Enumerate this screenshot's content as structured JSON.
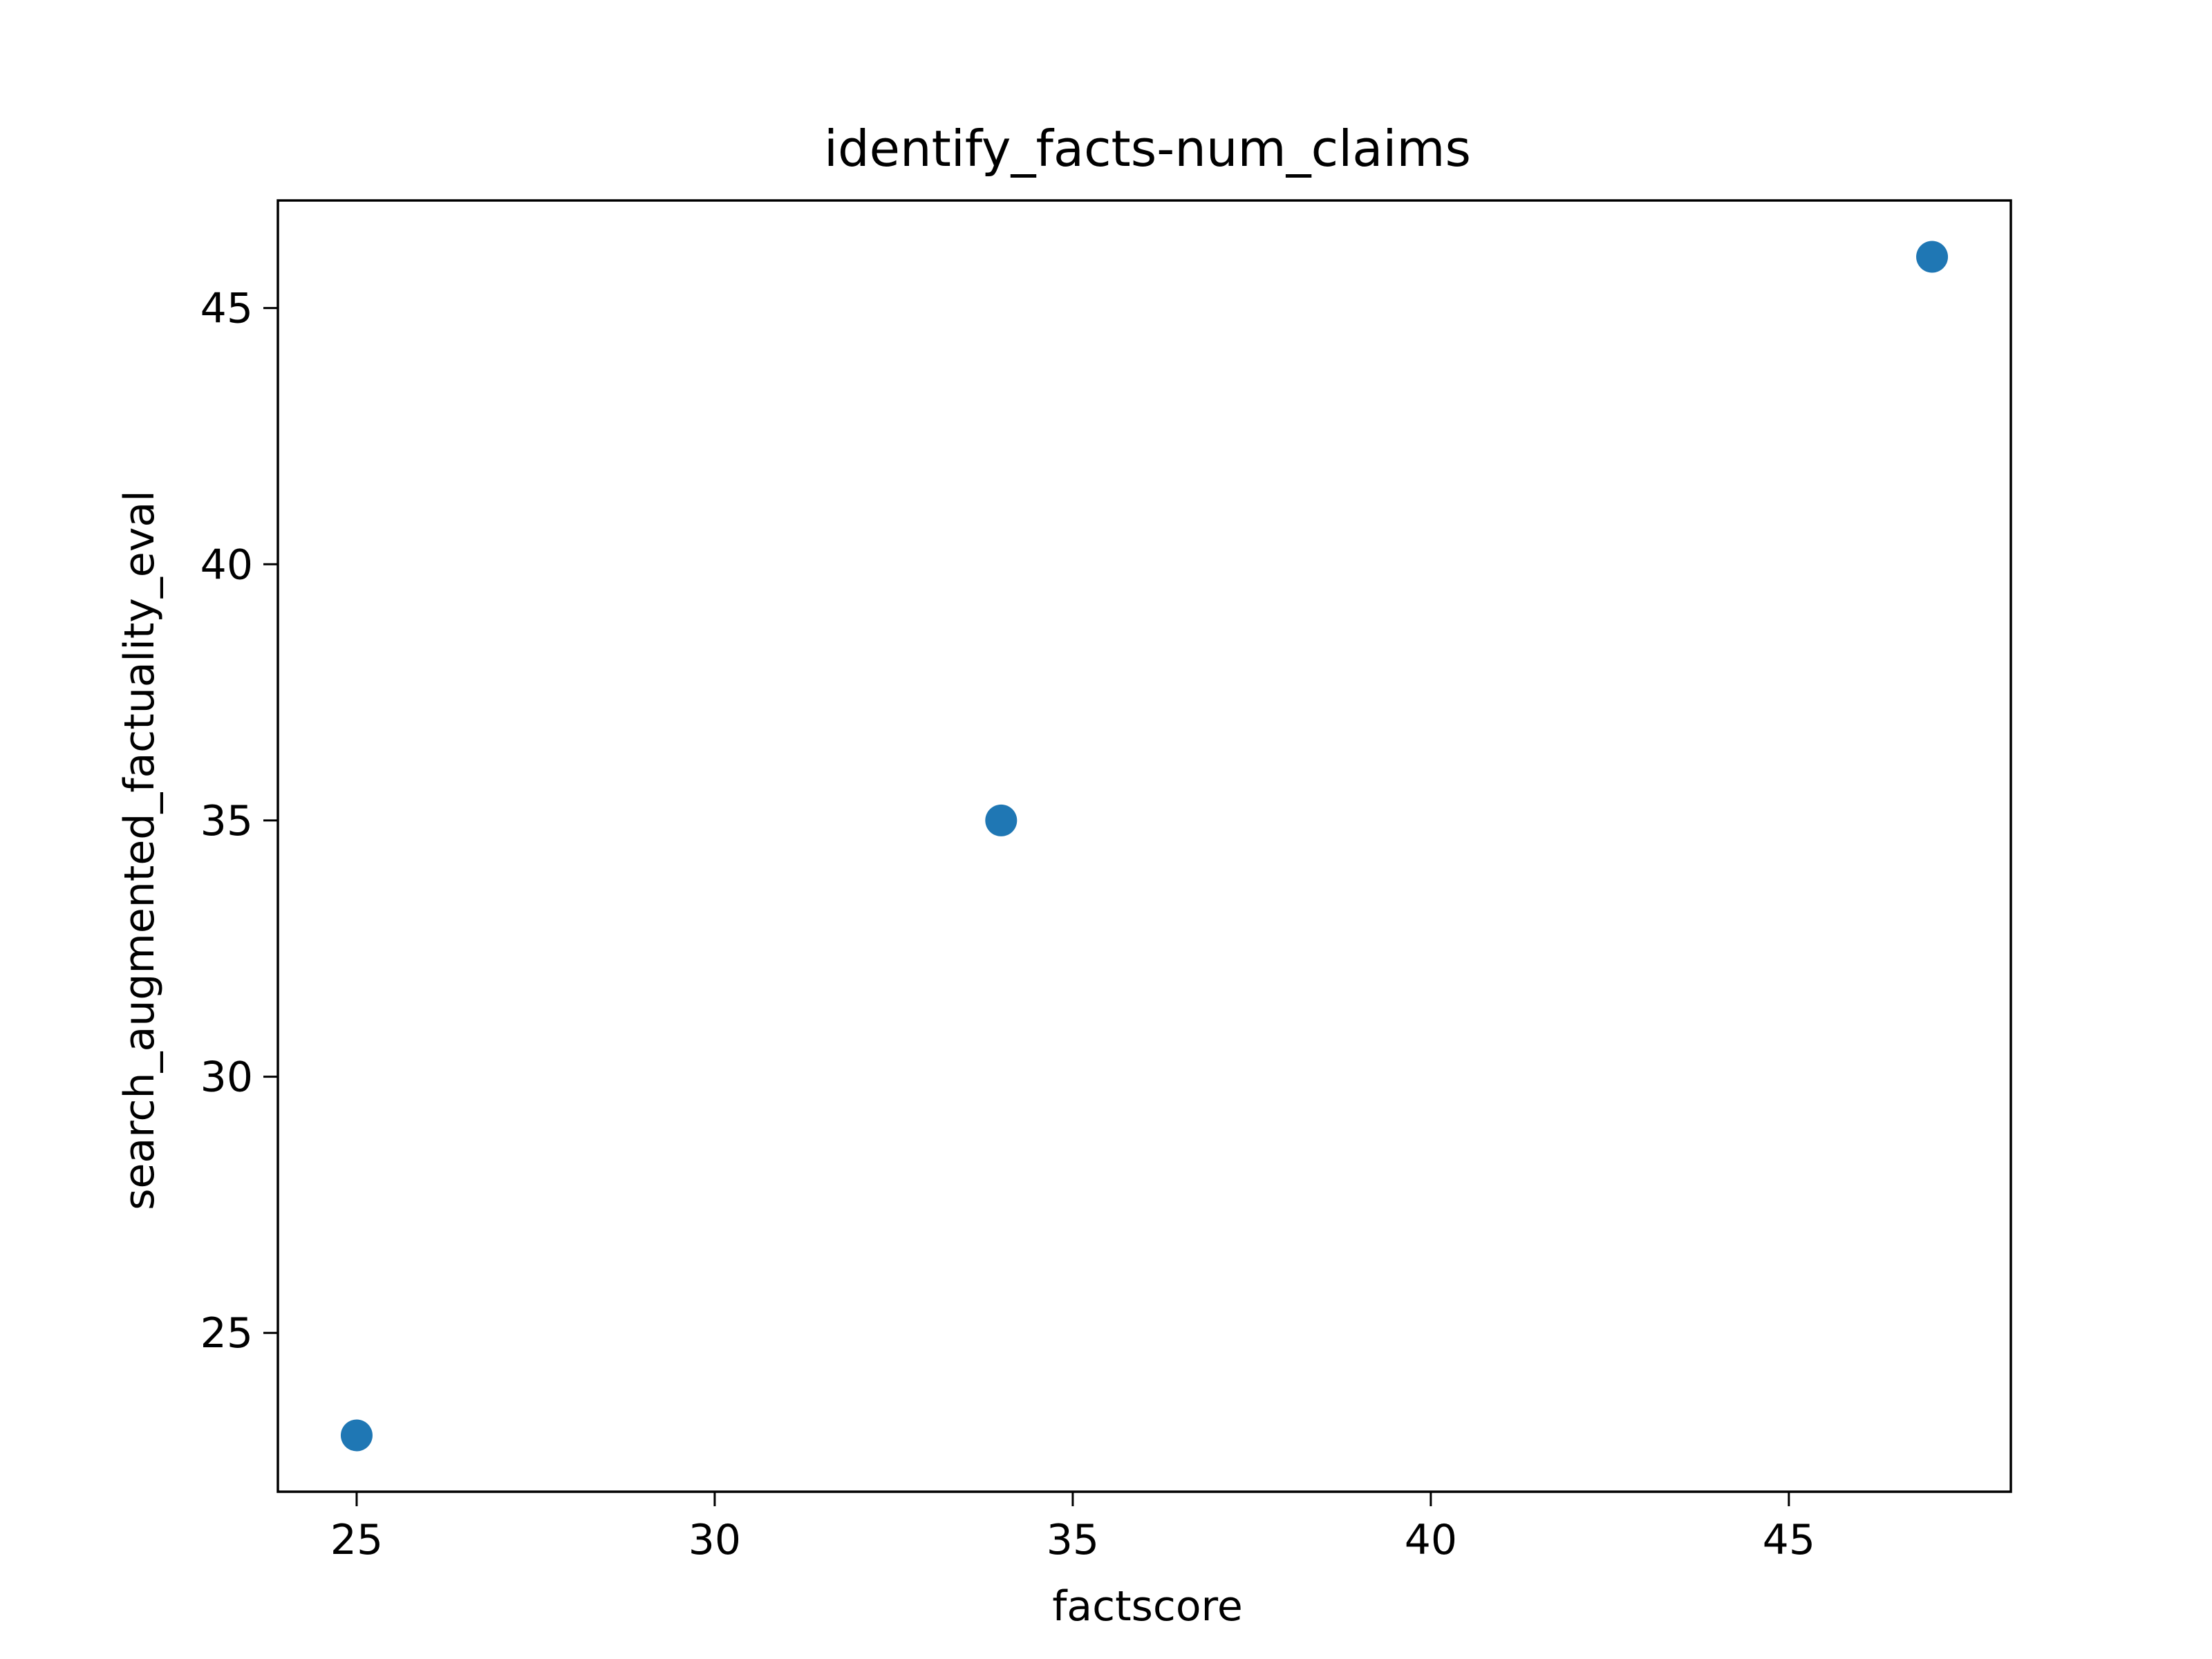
{
  "chart_data": {
    "type": "scatter",
    "title": "identify_facts-num_claims",
    "xlabel": "factscore",
    "ylabel": "search_augmented_factuality_eval",
    "xlim": [
      23.9,
      48.1
    ],
    "ylim": [
      21.9,
      47.1
    ],
    "xticks": [
      25,
      30,
      35,
      40,
      45
    ],
    "yticks": [
      25,
      30,
      35,
      40,
      45
    ],
    "grid": false,
    "marker_color": "#1f77b4",
    "points": [
      {
        "x": 25,
        "y": 23
      },
      {
        "x": 34,
        "y": 35
      },
      {
        "x": 47,
        "y": 46
      }
    ]
  }
}
